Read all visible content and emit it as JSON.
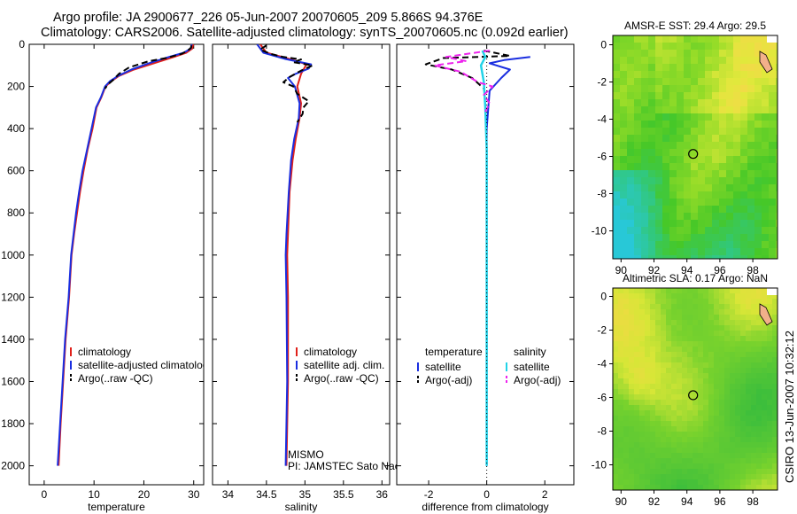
{
  "title_line1": "Argo profile: JA 2900677_226 05-Jun-2007 20070605_209 5.866S 94.376E",
  "title_line2": "Climatology: CARS2006. Satellite-adjusted climatology: synTS_20070605.nc (0.092d earlier)",
  "side_caption": "CSIRO 13-Jun-2007 10:32:12",
  "colors": {
    "clim": "#e0201a",
    "sat": "#1a2ee0",
    "argo": "#000000",
    "sal_sat": "#22d3e8",
    "sal_argo": "#ee22ee"
  },
  "chart_data": [
    {
      "type": "line",
      "id": "temperature",
      "xlabel": "temperature",
      "ylabel": "",
      "xlim": [
        -3,
        32
      ],
      "ylim": [
        2090,
        0
      ],
      "xticks": [
        "0",
        "10",
        "20",
        "30"
      ],
      "xtick_values": [
        0,
        10,
        20,
        30
      ],
      "yticks": [
        "0",
        "200",
        "400",
        "600",
        "800",
        "1000",
        "1200",
        "1400",
        "1600",
        "1800",
        "2000"
      ],
      "series": [
        {
          "name": "climatology",
          "values": [
            [
              29.9,
              0
            ],
            [
              29.7,
              20
            ],
            [
              28.5,
              40
            ],
            [
              26,
              60
            ],
            [
              22,
              90
            ],
            [
              18,
              120
            ],
            [
              15,
              150
            ],
            [
              13.5,
              175
            ],
            [
              12.3,
              200
            ],
            [
              11.5,
              250
            ],
            [
              10.5,
              300
            ],
            [
              9.7,
              400
            ],
            [
              8.7,
              500
            ],
            [
              7.9,
              600
            ],
            [
              7.2,
              700
            ],
            [
              6.6,
              800
            ],
            [
              6.0,
              900
            ],
            [
              5.5,
              1000
            ],
            [
              5.0,
              1200
            ],
            [
              4.3,
              1400
            ],
            [
              3.8,
              1600
            ],
            [
              3.3,
              1800
            ],
            [
              2.9,
              2000
            ]
          ]
        },
        {
          "name": "satellite-adjusted climatology",
          "values": [
            [
              29.6,
              0
            ],
            [
              29.4,
              20
            ],
            [
              28,
              40
            ],
            [
              25,
              60
            ],
            [
              21,
              90
            ],
            [
              17.5,
              120
            ],
            [
              14.8,
              150
            ],
            [
              13.2,
              175
            ],
            [
              12.2,
              200
            ],
            [
              11.4,
              250
            ],
            [
              10.4,
              300
            ],
            [
              9.5,
              400
            ],
            [
              8.6,
              500
            ],
            [
              7.7,
              600
            ],
            [
              7.0,
              700
            ],
            [
              6.4,
              800
            ],
            [
              5.9,
              900
            ],
            [
              5.4,
              1000
            ],
            [
              4.9,
              1200
            ],
            [
              4.2,
              1400
            ],
            [
              3.7,
              1600
            ],
            [
              3.2,
              1800
            ],
            [
              2.7,
              2000
            ]
          ]
        },
        {
          "name": "Argo(..raw -QC)",
          "values": [
            [
              29.5,
              5
            ],
            [
              29.5,
              15
            ],
            [
              28.8,
              30
            ],
            [
              27.6,
              45
            ],
            [
              24.5,
              65
            ],
            [
              21,
              80
            ],
            [
              17,
              110
            ],
            [
              15,
              140
            ],
            [
              13.8,
              170
            ],
            [
              12.8,
              190
            ],
            [
              12.2,
              210
            ]
          ]
        }
      ],
      "legend": [
        "climatology",
        "satellite-adjusted climatology",
        "Argo(..raw -QC)"
      ]
    },
    {
      "type": "line",
      "id": "salinity",
      "xlabel": "salinity",
      "ylabel": "",
      "xlim": [
        33.8,
        36.1
      ],
      "ylim": [
        2090,
        0
      ],
      "xticks": [
        "34",
        "34.5",
        "35",
        "35.5",
        "36"
      ],
      "xtick_values": [
        34,
        34.5,
        35,
        35.5,
        36
      ],
      "series": [
        {
          "name": "climatology",
          "values": [
            [
              34.42,
              0
            ],
            [
              34.5,
              40
            ],
            [
              34.8,
              70
            ],
            [
              35.02,
              95
            ],
            [
              34.95,
              140
            ],
            [
              34.9,
              200
            ],
            [
              34.95,
              280
            ],
            [
              34.93,
              350
            ],
            [
              34.88,
              450
            ],
            [
              34.84,
              550
            ],
            [
              34.8,
              700
            ],
            [
              34.78,
              900
            ],
            [
              34.77,
              1000
            ],
            [
              34.78,
              1200
            ],
            [
              34.78,
              1600
            ],
            [
              34.76,
              2000
            ]
          ]
        },
        {
          "name": "satellite adj. clim.",
          "values": [
            [
              34.38,
              0
            ],
            [
              34.46,
              40
            ],
            [
              34.75,
              70
            ],
            [
              35.08,
              95
            ],
            [
              35.05,
              115
            ],
            [
              34.88,
              140
            ],
            [
              34.78,
              160
            ],
            [
              34.87,
              200
            ],
            [
              34.93,
              280
            ],
            [
              34.92,
              350
            ],
            [
              34.86,
              450
            ],
            [
              34.82,
              550
            ],
            [
              34.79,
              700
            ],
            [
              34.76,
              900
            ],
            [
              34.75,
              1000
            ],
            [
              34.76,
              1200
            ],
            [
              34.77,
              1600
            ],
            [
              34.75,
              2000
            ]
          ]
        },
        {
          "name": "Argo(..raw -QC)",
          "values": [
            [
              34.5,
              5
            ],
            [
              34.42,
              25
            ],
            [
              34.55,
              45
            ],
            [
              34.72,
              60
            ],
            [
              34.95,
              72
            ],
            [
              34.85,
              85
            ],
            [
              35.1,
              100
            ],
            [
              34.95,
              125
            ],
            [
              34.8,
              155
            ],
            [
              34.72,
              180
            ],
            [
              34.85,
              200
            ],
            [
              34.9,
              235
            ],
            [
              35.05,
              270
            ],
            [
              34.98,
              300
            ],
            [
              34.97,
              330
            ],
            [
              34.9,
              370
            ]
          ]
        }
      ],
      "legend": [
        "climatology",
        "satellite adj. clim.",
        "Argo(..raw -QC)"
      ],
      "annotation": [
        "MISMO",
        "PI: JAMSTEC Sato Naoki"
      ]
    },
    {
      "type": "line",
      "id": "difference",
      "xlabel": "difference from climatology",
      "ylabel": "",
      "xlim": [
        -3.1,
        3.0
      ],
      "ylim": [
        2090,
        0
      ],
      "xticks": [
        "-2",
        "0",
        "2"
      ],
      "xtick_values": [
        -2,
        0,
        2
      ],
      "series": [
        {
          "name": "temperature satellite",
          "values": [
            [
              1.5,
              60
            ],
            [
              0.6,
              75
            ],
            [
              0.1,
              90
            ],
            [
              0.8,
              120
            ],
            [
              0.5,
              160
            ],
            [
              0.1,
              220
            ],
            [
              0,
              400
            ],
            [
              0,
              1000
            ],
            [
              0,
              2000
            ]
          ]
        },
        {
          "name": "temperature Argo(-adj)",
          "values": [
            [
              -0.1,
              30
            ],
            [
              0.8,
              55
            ],
            [
              -1.5,
              65
            ],
            [
              -2.1,
              95
            ],
            [
              -1.2,
              120
            ],
            [
              -0.5,
              160
            ],
            [
              -0.1,
              210
            ],
            [
              -0.05,
              250
            ]
          ]
        },
        {
          "name": "salinity satellite",
          "values": [
            [
              -0.15,
              30
            ],
            [
              -0.05,
              60
            ],
            [
              -0.2,
              100
            ],
            [
              -0.1,
              180
            ],
            [
              -0.05,
              300
            ],
            [
              0,
              500
            ],
            [
              0,
              1200
            ],
            [
              0,
              2000
            ]
          ]
        },
        {
          "name": "salinity Argo(-adj)",
          "values": [
            [
              0.1,
              30
            ],
            [
              -1.4,
              60
            ],
            [
              -0.7,
              80
            ],
            [
              -1.8,
              100
            ],
            [
              -0.9,
              130
            ],
            [
              -0.3,
              180
            ],
            [
              0.2,
              200
            ],
            [
              -0.1,
              240
            ],
            [
              0.1,
              280
            ],
            [
              -0.05,
              320
            ]
          ]
        }
      ],
      "legend_headers": [
        "temperature",
        "salinity"
      ],
      "legend": [
        "satellite",
        "Argo(-adj)",
        "satellite",
        "Argo(-adj)"
      ]
    },
    {
      "type": "heatmap",
      "id": "sst",
      "title": "AMSR-E SST: 29.4 Argo: 29.5",
      "xlim": [
        89.5,
        99.5
      ],
      "ylim": [
        -11.5,
        0.5
      ],
      "xticks": [
        "90",
        "92",
        "94",
        "96",
        "98"
      ],
      "xtick_values": [
        90,
        92,
        94,
        96,
        98
      ],
      "yticks": [
        "0",
        "-2",
        "-4",
        "-6",
        "-8",
        "-10"
      ],
      "ytick_values": [
        0,
        -2,
        -4,
        -6,
        -8,
        -10
      ],
      "marker": {
        "lon": 94.376,
        "lat": -5.866
      }
    },
    {
      "type": "heatmap",
      "id": "sla",
      "title": "Altimetric SLA: 0.17 Argo: NaN",
      "xlim": [
        89.5,
        99.5
      ],
      "ylim": [
        -11.5,
        0.5
      ],
      "xticks": [
        "90",
        "92",
        "94",
        "96",
        "98"
      ],
      "xtick_values": [
        90,
        92,
        94,
        96,
        98
      ],
      "yticks": [
        "0",
        "-2",
        "-4",
        "-6",
        "-8",
        "-10"
      ],
      "ytick_values": [
        0,
        -2,
        -4,
        -6,
        -8,
        -10
      ],
      "marker": {
        "lon": 94.376,
        "lat": -5.866
      }
    }
  ]
}
